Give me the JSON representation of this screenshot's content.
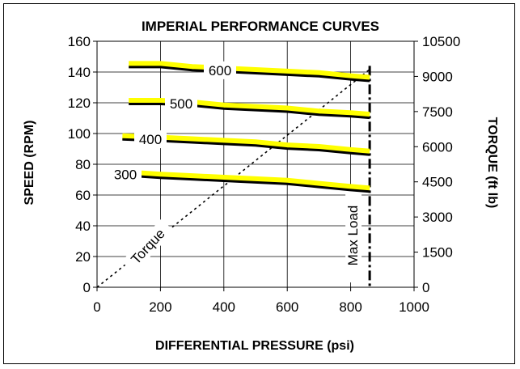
{
  "chart_data": {
    "type": "line",
    "title": "IMPERIAL PERFORMANCE CURVES",
    "xlabel": "DIFFERENTIAL PRESSURE (psi)",
    "ylabel": "SPEED (RPM)",
    "y2label": "TORQUE (ft lb)",
    "xlim": [
      0,
      1000
    ],
    "ylim": [
      0,
      160
    ],
    "y2lim": [
      0,
      10500
    ],
    "x_ticks": [
      "0",
      "200",
      "400",
      "600",
      "800",
      "1000"
    ],
    "y_ticks": [
      "0",
      "20",
      "40",
      "60",
      "80",
      "100",
      "120",
      "140",
      "160"
    ],
    "y2_ticks": [
      "0",
      "1500",
      "3000",
      "4500",
      "6000",
      "7500",
      "9000",
      "10500"
    ],
    "grid": true,
    "series": [
      {
        "name": "600",
        "x": [
          100,
          200,
          300,
          400,
          500,
          600,
          700,
          800,
          860
        ],
        "y": [
          144,
          144,
          142,
          141,
          140,
          139,
          138,
          136,
          135
        ]
      },
      {
        "name": "500",
        "x": [
          100,
          200,
          300,
          400,
          500,
          600,
          700,
          800,
          860
        ],
        "y": [
          120,
          120,
          119,
          117,
          116,
          115,
          113,
          112,
          111
        ]
      },
      {
        "name": "400",
        "x": [
          80,
          200,
          300,
          400,
          500,
          600,
          700,
          800,
          860
        ],
        "y": [
          97,
          96,
          95,
          94,
          93,
          91,
          90,
          88,
          87
        ]
      },
      {
        "name": "300",
        "x": [
          50,
          200,
          300,
          400,
          500,
          600,
          700,
          800,
          860
        ],
        "y": [
          74,
          72,
          71,
          70,
          69,
          68,
          66,
          64,
          63
        ]
      }
    ],
    "torque_line": {
      "label": "Torque",
      "x": [
        0,
        860
      ],
      "y2": [
        0,
        9300
      ]
    },
    "max_load": {
      "label": "Max Load",
      "x": 860
    },
    "colors": {
      "highlight": "#ffff00",
      "line": "#000000",
      "grid": "#000000"
    }
  }
}
